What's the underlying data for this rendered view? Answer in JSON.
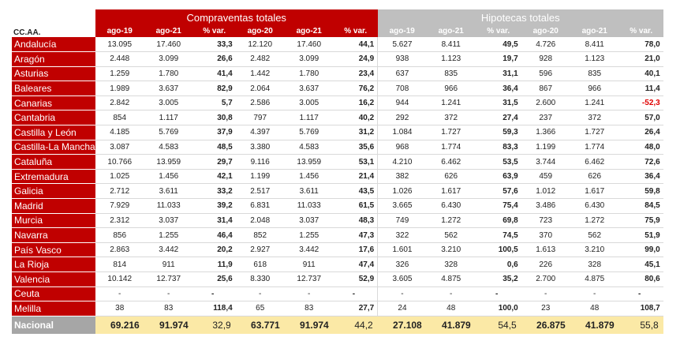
{
  "header": {
    "ccaa_label": "CC.AA.",
    "group_compraventas": "Compraventas totales",
    "group_hipotecas": "Hipotecas totales",
    "columns": [
      "ago-19",
      "ago-21",
      "% var.",
      "ago-20",
      "ago-21",
      "% var.",
      "ago-19",
      "ago-21",
      "% var.",
      "ago-20",
      "ago-21",
      "% var."
    ]
  },
  "rows": [
    {
      "region": "Andalucía",
      "v": [
        "13.095",
        "17.460",
        "33,3",
        "12.120",
        "17.460",
        "44,1",
        "5.627",
        "8.411",
        "49,5",
        "4.726",
        "8.411",
        "78,0"
      ]
    },
    {
      "region": "Aragón",
      "v": [
        "2.448",
        "3.099",
        "26,6",
        "2.482",
        "3.099",
        "24,9",
        "938",
        "1.123",
        "19,7",
        "928",
        "1.123",
        "21,0"
      ]
    },
    {
      "region": "Asturias",
      "v": [
        "1.259",
        "1.780",
        "41,4",
        "1.442",
        "1.780",
        "23,4",
        "637",
        "835",
        "31,1",
        "596",
        "835",
        "40,1"
      ]
    },
    {
      "region": "Baleares",
      "v": [
        "1.989",
        "3.637",
        "82,9",
        "2.064",
        "3.637",
        "76,2",
        "708",
        "966",
        "36,4",
        "867",
        "966",
        "11,4"
      ]
    },
    {
      "region": "Canarias",
      "v": [
        "2.842",
        "3.005",
        "5,7",
        "2.586",
        "3.005",
        "16,2",
        "944",
        "1.241",
        "31,5",
        "2.600",
        "1.241",
        "-52,3"
      ]
    },
    {
      "region": "Cantabria",
      "v": [
        "854",
        "1.117",
        "30,8",
        "797",
        "1.117",
        "40,2",
        "292",
        "372",
        "27,4",
        "237",
        "372",
        "57,0"
      ]
    },
    {
      "region": "Castilla y León",
      "v": [
        "4.185",
        "5.769",
        "37,9",
        "4.397",
        "5.769",
        "31,2",
        "1.084",
        "1.727",
        "59,3",
        "1.366",
        "1.727",
        "26,4"
      ]
    },
    {
      "region": "Castilla-La Mancha",
      "v": [
        "3.087",
        "4.583",
        "48,5",
        "3.380",
        "4.583",
        "35,6",
        "968",
        "1.774",
        "83,3",
        "1.199",
        "1.774",
        "48,0"
      ]
    },
    {
      "region": "Cataluña",
      "v": [
        "10.766",
        "13.959",
        "29,7",
        "9.116",
        "13.959",
        "53,1",
        "4.210",
        "6.462",
        "53,5",
        "3.744",
        "6.462",
        "72,6"
      ]
    },
    {
      "region": "Extremadura",
      "v": [
        "1.025",
        "1.456",
        "42,1",
        "1.199",
        "1.456",
        "21,4",
        "382",
        "626",
        "63,9",
        "459",
        "626",
        "36,4"
      ]
    },
    {
      "region": "Galicia",
      "v": [
        "2.712",
        "3.611",
        "33,2",
        "2.517",
        "3.611",
        "43,5",
        "1.026",
        "1.617",
        "57,6",
        "1.012",
        "1.617",
        "59,8"
      ]
    },
    {
      "region": "Madrid",
      "v": [
        "7.929",
        "11.033",
        "39,2",
        "6.831",
        "11.033",
        "61,5",
        "3.665",
        "6.430",
        "75,4",
        "3.486",
        "6.430",
        "84,5"
      ]
    },
    {
      "region": "Murcia",
      "v": [
        "2.312",
        "3.037",
        "31,4",
        "2.048",
        "3.037",
        "48,3",
        "749",
        "1.272",
        "69,8",
        "723",
        "1.272",
        "75,9"
      ]
    },
    {
      "region": "Navarra",
      "v": [
        "856",
        "1.255",
        "46,4",
        "852",
        "1.255",
        "47,3",
        "322",
        "562",
        "74,5",
        "370",
        "562",
        "51,9"
      ]
    },
    {
      "region": "País Vasco",
      "v": [
        "2.863",
        "3.442",
        "20,2",
        "2.927",
        "3.442",
        "17,6",
        "1.601",
        "3.210",
        "100,5",
        "1.613",
        "3.210",
        "99,0"
      ]
    },
    {
      "region": "La Rioja",
      "v": [
        "814",
        "911",
        "11,9",
        "618",
        "911",
        "47,4",
        "326",
        "328",
        "0,6",
        "226",
        "328",
        "45,1"
      ]
    },
    {
      "region": "Valencia",
      "v": [
        "10.142",
        "12.737",
        "25,6",
        "8.330",
        "12.737",
        "52,9",
        "3.605",
        "4.875",
        "35,2",
        "2.700",
        "4.875",
        "80,6"
      ]
    },
    {
      "region": "Ceuta",
      "v": [
        "-",
        "-",
        "-",
        "-",
        "-",
        "-",
        "-",
        "-",
        "-",
        "-",
        "-",
        "-"
      ]
    },
    {
      "region": "Melilla",
      "v": [
        "38",
        "83",
        "118,4",
        "65",
        "83",
        "27,7",
        "24",
        "48",
        "100,0",
        "23",
        "48",
        "108,7"
      ]
    }
  ],
  "total": {
    "region": "Nacional",
    "v": [
      "69.216",
      "91.974",
      "32,9",
      "63.771",
      "91.974",
      "44,2",
      "27.108",
      "41.879",
      "54,5",
      "26.875",
      "41.879",
      "55,8"
    ]
  }
}
